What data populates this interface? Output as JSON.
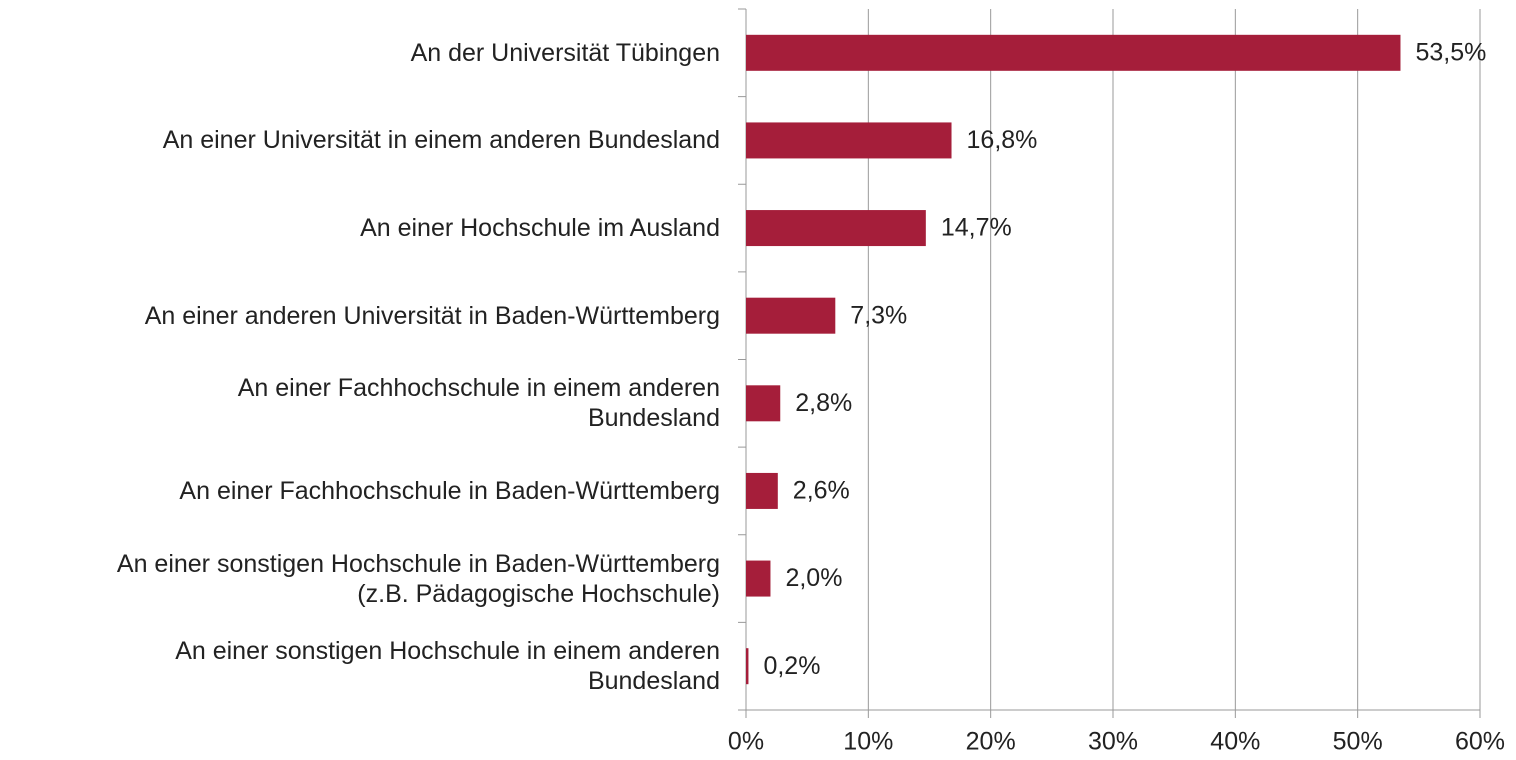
{
  "chart_data": {
    "type": "bar",
    "orientation": "horizontal",
    "categories": [
      "An der Universität Tübingen",
      "An einer Universität in einem anderen Bundesland",
      "An einer Hochschule im Ausland",
      "An einer anderen Universität in Baden-Württemberg",
      "An einer Fachhochschule in einem anderen\nBundesland",
      "An einer Fachhochschule in Baden-Württemberg",
      "An einer sonstigen Hochschule in Baden-Württemberg\n(z.B. Pädagogische Hochschule)",
      "An einer sonstigen Hochschule in einem anderen\nBundesland"
    ],
    "values": [
      53.5,
      16.8,
      14.7,
      7.3,
      2.8,
      2.6,
      2.0,
      0.2
    ],
    "value_labels": [
      "53,5%",
      "16,8%",
      "14,7%",
      "7,3%",
      "2,8%",
      "2,6%",
      "2,0%",
      "0,2%"
    ],
    "color": "#a51e3a",
    "xlim": [
      0,
      60
    ],
    "xticks": [
      {
        "value": 0,
        "label": "0%"
      },
      {
        "value": 10,
        "label": "10%"
      },
      {
        "value": 20,
        "label": "20%"
      },
      {
        "value": 30,
        "label": "30%"
      },
      {
        "value": 40,
        "label": "40%"
      },
      {
        "value": 50,
        "label": "50%"
      },
      {
        "value": 60,
        "label": "60%"
      }
    ],
    "grid": true
  }
}
